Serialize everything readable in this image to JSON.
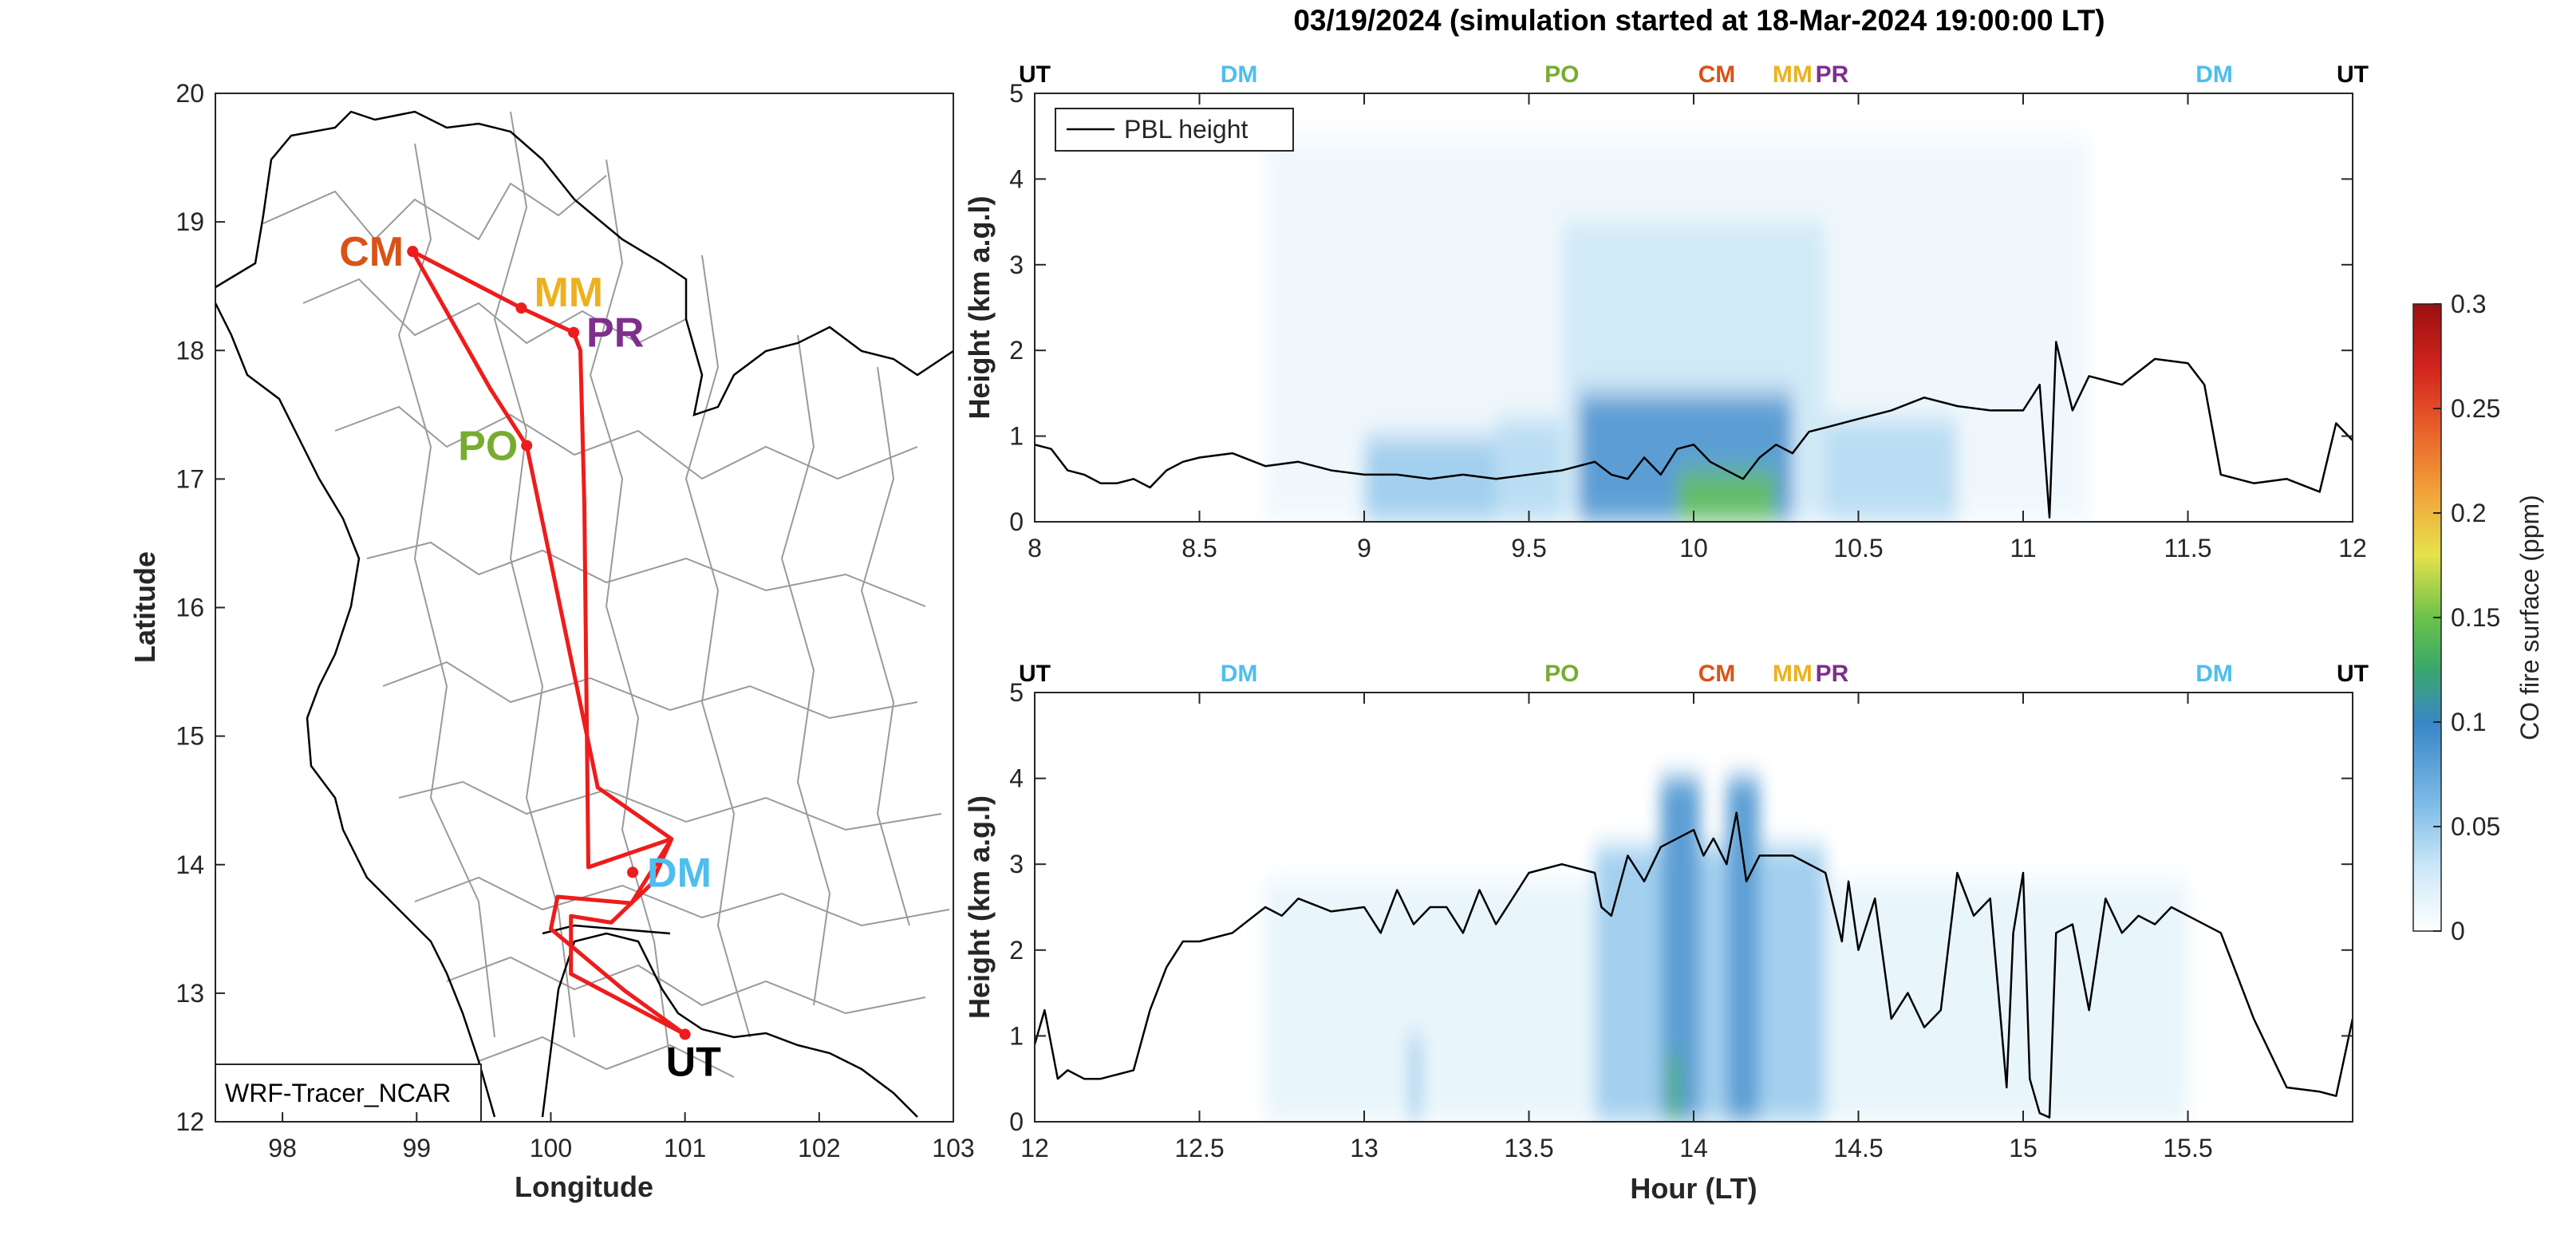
{
  "title": "03/19/2024 (simulation started at 18-Mar-2024 19:00:00 LT)",
  "colors": {
    "CM": "#D95319",
    "MM": "#EDB120",
    "PR": "#7E2F8E",
    "PO": "#77AC30",
    "DM": "#4DBEEE",
    "UT": "#000000",
    "route": "#EE1C1C"
  },
  "map": {
    "xlabel": "Longitude",
    "ylabel": "Latitude",
    "xticks": [
      "98",
      "99",
      "100",
      "101",
      "102",
      "103"
    ],
    "yticks": [
      "12",
      "13",
      "14",
      "15",
      "16",
      "17",
      "18",
      "19",
      "20"
    ],
    "xlim": [
      97.5,
      103
    ],
    "ylim": [
      12,
      20
    ],
    "legend": "WRF-Tracer_NCAR",
    "sites": [
      {
        "code": "CM",
        "lon": 98.97,
        "lat": 18.77
      },
      {
        "code": "MM",
        "lon": 99.78,
        "lat": 18.33
      },
      {
        "code": "PR",
        "lon": 100.17,
        "lat": 18.14
      },
      {
        "code": "PO",
        "lon": 99.82,
        "lat": 17.26
      },
      {
        "code": "DM",
        "lon": 100.61,
        "lat": 13.94
      },
      {
        "code": "UT",
        "lon": 101.0,
        "lat": 12.68
      }
    ],
    "route": [
      [
        101.0,
        12.68
      ],
      [
        100.15,
        13.15
      ],
      [
        100.15,
        13.6
      ],
      [
        100.45,
        13.55
      ],
      [
        100.75,
        13.85
      ],
      [
        100.9,
        14.2
      ],
      [
        100.35,
        14.6
      ],
      [
        99.82,
        17.26
      ],
      [
        99.55,
        17.7
      ],
      [
        98.97,
        18.77
      ],
      [
        99.78,
        18.33
      ],
      [
        100.17,
        18.14
      ],
      [
        100.22,
        18.0
      ],
      [
        100.25,
        16.8
      ],
      [
        100.28,
        13.98
      ],
      [
        100.9,
        14.2
      ],
      [
        100.6,
        13.7
      ],
      [
        100.05,
        13.75
      ],
      [
        100.0,
        13.5
      ],
      [
        100.55,
        13.02
      ],
      [
        101.0,
        12.68
      ]
    ]
  },
  "colorbar": {
    "label": "CO fire surface (ppm)",
    "ticks": [
      "0",
      "0.05",
      "0.1",
      "0.15",
      "0.2",
      "0.25",
      "0.3"
    ]
  },
  "chart_data": [
    {
      "type": "heatmap",
      "xlim": [
        8,
        12
      ],
      "ylim": [
        0,
        5
      ],
      "xticks": [
        "8",
        "8.5",
        "9",
        "9.5",
        "10",
        "10.5",
        "11",
        "11.5",
        "12"
      ],
      "yticks": [
        "0",
        "1",
        "2",
        "3",
        "4",
        "5"
      ],
      "xlabel": "",
      "ylabel": "Height (km a.g.l)",
      "legend": "PBL height",
      "site_markers": [
        {
          "code": "UT",
          "hour": 8.0
        },
        {
          "code": "DM",
          "hour": 8.62
        },
        {
          "code": "PO",
          "hour": 9.6
        },
        {
          "code": "CM",
          "hour": 10.07
        },
        {
          "code": "MM",
          "hour": 10.3
        },
        {
          "code": "PR",
          "hour": 10.42
        },
        {
          "code": "DM",
          "hour": 11.58
        },
        {
          "code": "UT",
          "hour": 11.97
        }
      ],
      "pbl_height": {
        "x": [
          8.0,
          8.05,
          8.1,
          8.15,
          8.2,
          8.25,
          8.3,
          8.35,
          8.4,
          8.45,
          8.5,
          8.6,
          8.7,
          8.8,
          8.9,
          9.0,
          9.1,
          9.2,
          9.3,
          9.4,
          9.5,
          9.6,
          9.7,
          9.75,
          9.8,
          9.85,
          9.9,
          9.95,
          10.0,
          10.05,
          10.1,
          10.15,
          10.2,
          10.25,
          10.3,
          10.35,
          10.4,
          10.5,
          10.6,
          10.7,
          10.8,
          10.9,
          11.0,
          11.05,
          11.08,
          11.1,
          11.15,
          11.2,
          11.3,
          11.4,
          11.5,
          11.55,
          11.6,
          11.65,
          11.7,
          11.8,
          11.9,
          11.95,
          12.0
        ],
        "y": [
          0.9,
          0.85,
          0.6,
          0.55,
          0.45,
          0.45,
          0.5,
          0.4,
          0.6,
          0.7,
          0.75,
          0.8,
          0.65,
          0.7,
          0.6,
          0.55,
          0.55,
          0.5,
          0.55,
          0.5,
          0.55,
          0.6,
          0.7,
          0.55,
          0.5,
          0.75,
          0.55,
          0.85,
          0.9,
          0.7,
          0.6,
          0.5,
          0.75,
          0.9,
          0.8,
          1.05,
          1.1,
          1.2,
          1.3,
          1.45,
          1.35,
          1.3,
          1.3,
          1.6,
          0.05,
          2.1,
          1.3,
          1.7,
          1.6,
          1.9,
          1.85,
          1.6,
          0.55,
          0.5,
          0.45,
          0.5,
          0.35,
          1.15,
          0.95
        ]
      },
      "co_field": [
        {
          "x0": 9.95,
          "x1": 10.25,
          "ytop": 0.6,
          "level": 0.14
        },
        {
          "x0": 9.65,
          "x1": 10.3,
          "ytop": 1.5,
          "level": 0.09
        },
        {
          "x0": 9.6,
          "x1": 10.4,
          "ytop": 3.5,
          "level": 0.03
        },
        {
          "x0": 9.0,
          "x1": 9.4,
          "ytop": 1.0,
          "level": 0.05
        },
        {
          "x0": 9.4,
          "x1": 10.8,
          "ytop": 1.2,
          "level": 0.04
        },
        {
          "x0": 8.7,
          "x1": 11.2,
          "ytop": 4.5,
          "level": 0.01
        }
      ]
    },
    {
      "type": "heatmap",
      "xlim": [
        12,
        16
      ],
      "ylim": [
        0,
        5
      ],
      "xticks": [
        "12",
        "12.5",
        "13",
        "13.5",
        "14",
        "14.5",
        "15",
        "15.5"
      ],
      "yticks": [
        "0",
        "1",
        "2",
        "3",
        "4",
        "5"
      ],
      "xlabel": "Hour (LT)",
      "ylabel": "Height (km a.g.l)",
      "site_markers": [
        {
          "code": "UT",
          "hour": 12.0
        },
        {
          "code": "DM",
          "hour": 12.62
        },
        {
          "code": "PO",
          "hour": 13.6
        },
        {
          "code": "CM",
          "hour": 14.07
        },
        {
          "code": "MM",
          "hour": 14.3
        },
        {
          "code": "PR",
          "hour": 14.42
        },
        {
          "code": "DM",
          "hour": 15.58
        },
        {
          "code": "UT",
          "hour": 15.97
        }
      ],
      "pbl_height": {
        "x": [
          12.0,
          12.03,
          12.07,
          12.1,
          12.15,
          12.2,
          12.3,
          12.35,
          12.4,
          12.45,
          12.5,
          12.6,
          12.7,
          12.75,
          12.8,
          12.9,
          13.0,
          13.05,
          13.1,
          13.15,
          13.2,
          13.25,
          13.3,
          13.35,
          13.4,
          13.5,
          13.6,
          13.7,
          13.72,
          13.75,
          13.8,
          13.85,
          13.9,
          14.0,
          14.03,
          14.06,
          14.1,
          14.13,
          14.16,
          14.2,
          14.3,
          14.4,
          14.45,
          14.47,
          14.5,
          14.55,
          14.6,
          14.65,
          14.7,
          14.75,
          14.8,
          14.85,
          14.9,
          14.95,
          14.97,
          15.0,
          15.02,
          15.05,
          15.08,
          15.1,
          15.15,
          15.2,
          15.25,
          15.3,
          15.35,
          15.4,
          15.45,
          15.5,
          15.6,
          15.7,
          15.8,
          15.9,
          15.95,
          16.0
        ],
        "y": [
          0.9,
          1.3,
          0.5,
          0.6,
          0.5,
          0.5,
          0.6,
          1.3,
          1.8,
          2.1,
          2.1,
          2.2,
          2.5,
          2.4,
          2.6,
          2.45,
          2.5,
          2.2,
          2.7,
          2.3,
          2.5,
          2.5,
          2.2,
          2.7,
          2.3,
          2.9,
          3.0,
          2.9,
          2.5,
          2.4,
          3.1,
          2.8,
          3.2,
          3.4,
          3.1,
          3.3,
          3.0,
          3.6,
          2.8,
          3.1,
          3.1,
          2.9,
          2.1,
          2.8,
          2.0,
          2.6,
          1.2,
          1.5,
          1.1,
          1.3,
          2.9,
          2.4,
          2.6,
          0.4,
          2.2,
          2.9,
          0.5,
          0.1,
          0.05,
          2.2,
          2.3,
          1.3,
          2.6,
          2.2,
          2.4,
          2.3,
          2.5,
          2.4,
          2.2,
          1.2,
          0.4,
          0.35,
          0.3,
          1.2
        ]
      },
      "co_field": [
        {
          "x0": 13.92,
          "x1": 13.96,
          "ytop": 0.8,
          "level": 0.13
        },
        {
          "x0": 13.9,
          "x1": 14.02,
          "ytop": 4.0,
          "level": 0.09
        },
        {
          "x0": 14.1,
          "x1": 14.2,
          "ytop": 4.0,
          "level": 0.09
        },
        {
          "x0": 13.7,
          "x1": 14.4,
          "ytop": 3.2,
          "level": 0.05
        },
        {
          "x0": 13.14,
          "x1": 13.17,
          "ytop": 1.0,
          "level": 0.06
        },
        {
          "x0": 12.7,
          "x1": 15.5,
          "ytop": 2.8,
          "level": 0.015
        }
      ]
    }
  ]
}
